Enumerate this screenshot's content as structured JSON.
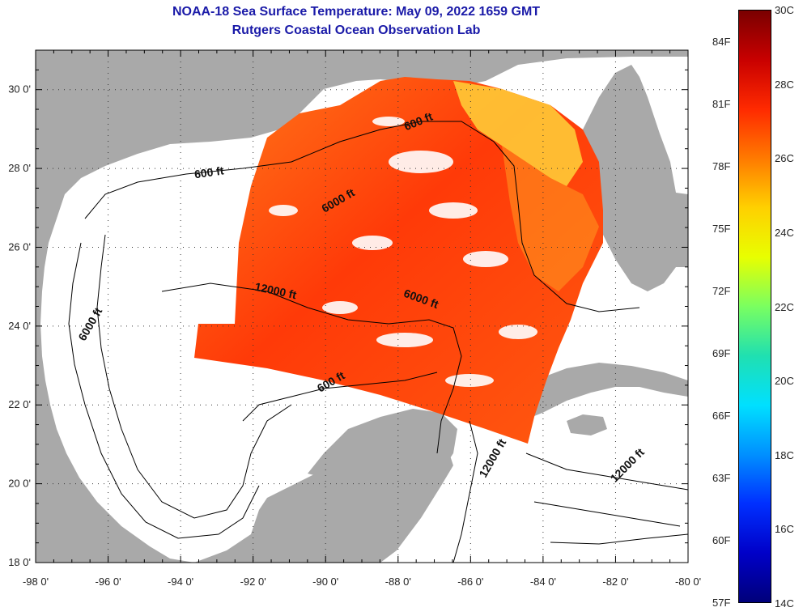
{
  "title_line1": "NOAA-18 Sea Surface Temperature:  May 09, 2022 1659 GMT",
  "title_line2": "Rutgers Coastal Ocean Observation Lab",
  "colors": {
    "title": "#1a1aa8",
    "land": "#a9a9a9",
    "ocean": "#ffffff",
    "sst_warm": "#ff3b00",
    "sst_mid": "#ff6a10",
    "sst_cool": "#ffd23a"
  },
  "map": {
    "lon_labels": [
      "-98 0'",
      "-96 0'",
      "-94 0'",
      "-92 0'",
      "-90 0'",
      "-88 0'",
      "-86 0'",
      "-84 0'",
      "-82 0'",
      "-80 0'"
    ],
    "lat_labels": [
      "18 0'",
      "20 0'",
      "22 0'",
      "24 0'",
      "26 0'",
      "28 0'",
      "30 0'"
    ],
    "lon_range": [
      -98,
      -80
    ],
    "lat_range": [
      18,
      31
    ],
    "contour_labels": [
      {
        "text": "600 ft",
        "lon": -93.2,
        "lat": 27.8
      },
      {
        "text": "600 ft",
        "lon": -87.4,
        "lat": 29.1
      },
      {
        "text": "6000 ft",
        "lon": -89.6,
        "lat": 27.1
      },
      {
        "text": "6000 ft",
        "lon": -96.4,
        "lat": 24.0
      },
      {
        "text": "6000 ft",
        "lon": -87.4,
        "lat": 24.6
      },
      {
        "text": "12000 ft",
        "lon": -91.4,
        "lat": 24.8
      },
      {
        "text": "600 ft",
        "lon": -89.8,
        "lat": 22.5
      },
      {
        "text": "12000 ft",
        "lon": -85.3,
        "lat": 20.6
      },
      {
        "text": "12000 ft",
        "lon": -81.6,
        "lat": 20.4
      }
    ]
  },
  "colorbar": {
    "fahrenheit_labels": [
      "84F",
      "81F",
      "78F",
      "75F",
      "72F",
      "69F",
      "66F",
      "63F",
      "60F",
      "57F"
    ],
    "celsius_labels": [
      "30C",
      "28C",
      "26C",
      "24C",
      "22C",
      "20C",
      "18C",
      "16C",
      "14C"
    ],
    "gradient_stops": [
      "#7a0000",
      "#c80000",
      "#ff2a00",
      "#ff7a00",
      "#ffd000",
      "#e8ff00",
      "#7aff60",
      "#20e0b0",
      "#00e0ff",
      "#0090ff",
      "#0030ff",
      "#0000c8",
      "#00007a"
    ]
  }
}
